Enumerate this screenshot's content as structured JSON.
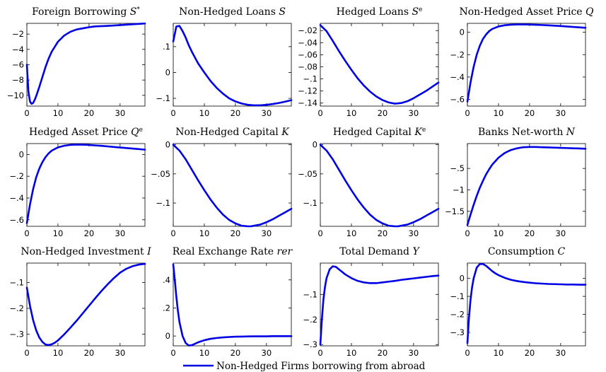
{
  "figure": {
    "legend_label": "Non-Hedged Firms borrowing from abroad",
    "line_color": "#0000e6"
  },
  "chart_data": [
    {
      "type": "line",
      "title": "Foreign Borrowing S*",
      "title_main": "Foreign Borrowing ",
      "title_sym": "S",
      "title_sup": "*",
      "xlim": [
        0,
        38
      ],
      "ylim": [
        -11.4,
        -0.6
      ],
      "xticks": [
        0,
        10,
        20,
        30
      ],
      "yticks": [
        -2,
        -4,
        -6,
        -8,
        -10
      ],
      "series": [
        {
          "x": [
            0,
            0.5,
            1,
            1.5,
            2,
            2.5,
            3,
            3.5,
            4,
            5,
            6,
            7,
            8,
            10,
            12,
            14,
            16,
            18,
            20,
            22,
            25,
            28,
            31,
            34,
            38
          ],
          "y": [
            -6,
            -9.5,
            -10.8,
            -11.1,
            -11,
            -10.6,
            -10.1,
            -9.5,
            -8.9,
            -7.6,
            -6.3,
            -5.2,
            -4.3,
            -3,
            -2.2,
            -1.7,
            -1.4,
            -1.25,
            -1.1,
            -1,
            -0.95,
            -0.88,
            -0.8,
            -0.72,
            -0.62
          ]
        }
      ]
    },
    {
      "type": "line",
      "title": "Non-Hedged Loans S",
      "title_main": "Non-Hedged Loans ",
      "title_sym": "S",
      "title_sup": "",
      "xlim": [
        0,
        38
      ],
      "ylim": [
        -0.13,
        0.19
      ],
      "xticks": [
        0,
        10,
        20,
        30
      ],
      "yticks": [
        0.1,
        0,
        -0.1
      ],
      "series": [
        {
          "x": [
            0,
            1,
            2,
            3,
            4,
            5,
            6,
            8,
            10,
            12,
            14,
            16,
            18,
            20,
            22,
            24,
            26,
            28,
            30,
            32,
            34,
            36,
            38
          ],
          "y": [
            0.12,
            0.178,
            0.18,
            0.16,
            0.135,
            0.105,
            0.08,
            0.035,
            0,
            -0.033,
            -0.06,
            -0.082,
            -0.1,
            -0.112,
            -0.12,
            -0.125,
            -0.127,
            -0.127,
            -0.125,
            -0.122,
            -0.118,
            -0.113,
            -0.107
          ]
        }
      ]
    },
    {
      "type": "line",
      "title": "Hedged Loans S^e",
      "title_main": "Hedged Loans ",
      "title_sym": "S",
      "title_sup": "e",
      "xlim": [
        0,
        38
      ],
      "ylim": [
        -0.145,
        -0.008
      ],
      "xticks": [
        0,
        10,
        20,
        30
      ],
      "yticks": [
        -0.02,
        -0.04,
        -0.06,
        -0.08,
        -0.1,
        -0.12,
        -0.14
      ],
      "series": [
        {
          "x": [
            0,
            2,
            4,
            6,
            8,
            10,
            12,
            14,
            16,
            18,
            20,
            22,
            24,
            26,
            28,
            30,
            32,
            34,
            36,
            38
          ],
          "y": [
            -0.011,
            -0.021,
            -0.037,
            -0.054,
            -0.07,
            -0.085,
            -0.099,
            -0.111,
            -0.121,
            -0.129,
            -0.135,
            -0.139,
            -0.141,
            -0.14,
            -0.137,
            -0.132,
            -0.126,
            -0.12,
            -0.113,
            -0.106
          ]
        }
      ]
    },
    {
      "type": "line",
      "title": "Non-Hedged Asset Price Q",
      "title_main": "Non-Hedged Asset Price ",
      "title_sym": "Q",
      "title_sup": "",
      "xlim": [
        0,
        38
      ],
      "ylim": [
        -0.66,
        0.08
      ],
      "xticks": [
        0,
        10,
        20,
        30
      ],
      "yticks": [
        0,
        -0.2,
        -0.4,
        -0.6
      ],
      "series": [
        {
          "x": [
            0,
            1,
            2,
            3,
            4,
            5,
            6,
            7,
            8,
            10,
            12,
            14,
            16,
            18,
            20,
            22,
            24,
            26,
            28,
            30,
            32,
            34,
            36,
            38
          ],
          "y": [
            -0.62,
            -0.45,
            -0.31,
            -0.2,
            -0.12,
            -0.06,
            -0.02,
            0.01,
            0.03,
            0.052,
            0.063,
            0.068,
            0.07,
            0.07,
            0.069,
            0.067,
            0.065,
            0.062,
            0.059,
            0.056,
            0.052,
            0.048,
            0.044,
            0.04
          ]
        }
      ]
    },
    {
      "type": "line",
      "title": "Hedged Asset Price Q^e",
      "title_main": "Hedged Asset Price ",
      "title_sym": "Q",
      "title_sup": "e",
      "xlim": [
        0,
        38
      ],
      "ylim": [
        -0.66,
        0.1
      ],
      "xticks": [
        0,
        10,
        20,
        30
      ],
      "yticks": [
        0,
        -0.2,
        -0.4,
        -0.6
      ],
      "series": [
        {
          "x": [
            0,
            1,
            2,
            3,
            4,
            5,
            6,
            7,
            8,
            10,
            12,
            14,
            16,
            18,
            20,
            22,
            24,
            26,
            28,
            30,
            32,
            34,
            36,
            38
          ],
          "y": [
            -0.63,
            -0.46,
            -0.32,
            -0.21,
            -0.13,
            -0.07,
            -0.025,
            0.01,
            0.035,
            0.065,
            0.08,
            0.088,
            0.091,
            0.09,
            0.087,
            0.083,
            0.079,
            0.074,
            0.069,
            0.064,
            0.059,
            0.054,
            0.049,
            0.044
          ]
        }
      ]
    },
    {
      "type": "line",
      "title": "Non-Hedged Capital K",
      "title_main": "Non-Hedged Capital ",
      "title_sym": "K",
      "title_sup": "",
      "xlim": [
        0,
        38
      ],
      "ylim": [
        -0.14,
        0.002
      ],
      "xticks": [
        0,
        10,
        20,
        30
      ],
      "yticks": [
        0,
        -0.05,
        -0.1
      ],
      "series": [
        {
          "x": [
            0,
            2,
            4,
            6,
            8,
            10,
            12,
            14,
            16,
            18,
            20,
            22,
            24,
            25,
            26,
            28,
            30,
            32,
            34,
            36,
            38
          ],
          "y": [
            0,
            -0.01,
            -0.025,
            -0.043,
            -0.061,
            -0.078,
            -0.094,
            -0.108,
            -0.12,
            -0.129,
            -0.135,
            -0.139,
            -0.14,
            -0.14,
            -0.139,
            -0.137,
            -0.133,
            -0.128,
            -0.122,
            -0.116,
            -0.11
          ]
        }
      ]
    },
    {
      "type": "line",
      "title": "Hedged Capital K^e",
      "title_main": "Hedged Capital ",
      "title_sym": "K",
      "title_sup": "e",
      "xlim": [
        0,
        38
      ],
      "ylim": [
        -0.14,
        0.002
      ],
      "xticks": [
        0,
        10,
        20,
        30
      ],
      "yticks": [
        0,
        -0.05,
        -0.1
      ],
      "series": [
        {
          "x": [
            0,
            2,
            4,
            6,
            8,
            10,
            12,
            14,
            16,
            18,
            20,
            22,
            24,
            25,
            26,
            28,
            30,
            32,
            34,
            36,
            38
          ],
          "y": [
            0,
            -0.01,
            -0.025,
            -0.043,
            -0.061,
            -0.078,
            -0.094,
            -0.108,
            -0.12,
            -0.129,
            -0.135,
            -0.139,
            -0.14,
            -0.14,
            -0.139,
            -0.137,
            -0.133,
            -0.128,
            -0.122,
            -0.116,
            -0.11
          ]
        }
      ]
    },
    {
      "type": "line",
      "title": "Banks Net-worth N",
      "title_main": "Banks Net-worth ",
      "title_sym": "N",
      "title_sup": "",
      "xlim": [
        0,
        38
      ],
      "ylim": [
        -1.85,
        0.08
      ],
      "xticks": [
        0,
        10,
        20,
        30
      ],
      "yticks": [
        -0.5,
        -1,
        -1.5
      ],
      "series": [
        {
          "x": [
            0,
            1,
            2,
            3,
            4,
            5,
            6,
            7,
            8,
            10,
            12,
            14,
            16,
            18,
            20,
            22,
            24,
            26,
            28,
            30,
            32,
            34,
            36,
            38
          ],
          "y": [
            -1.82,
            -1.58,
            -1.35,
            -1.14,
            -0.95,
            -0.79,
            -0.64,
            -0.52,
            -0.41,
            -0.25,
            -0.14,
            -0.07,
            -0.03,
            -0.005,
            0,
            0,
            -0.005,
            -0.01,
            -0.015,
            -0.02,
            -0.025,
            -0.03,
            -0.035,
            -0.04
          ]
        }
      ]
    },
    {
      "type": "line",
      "title": "Non-Hedged Investment I",
      "title_main": "Non-Hedged Investment ",
      "title_sym": "I",
      "title_sup": "",
      "xlim": [
        0,
        38
      ],
      "ylim": [
        -0.345,
        -0.025
      ],
      "xticks": [
        0,
        10,
        20,
        30
      ],
      "yticks": [
        -0.1,
        -0.2,
        -0.3
      ],
      "series": [
        {
          "x": [
            0,
            1,
            2,
            3,
            4,
            5,
            6,
            7,
            8,
            9,
            10,
            12,
            14,
            16,
            18,
            20,
            22,
            24,
            26,
            28,
            30,
            32,
            34,
            36,
            38
          ],
          "y": [
            -0.12,
            -0.19,
            -0.245,
            -0.285,
            -0.313,
            -0.33,
            -0.34,
            -0.342,
            -0.339,
            -0.333,
            -0.324,
            -0.301,
            -0.275,
            -0.248,
            -0.219,
            -0.19,
            -0.161,
            -0.133,
            -0.107,
            -0.083,
            -0.062,
            -0.047,
            -0.037,
            -0.031,
            -0.028
          ]
        }
      ]
    },
    {
      "type": "line",
      "title": "Real Exchange Rate rer",
      "title_main": "Real Exchange Rate ",
      "title_sym": "rer",
      "title_sup": "",
      "xlim": [
        0,
        38
      ],
      "ylim": [
        -0.07,
        0.52
      ],
      "xticks": [
        0,
        10,
        20,
        30
      ],
      "yticks": [
        0.4,
        0.2,
        0
      ],
      "series": [
        {
          "x": [
            0,
            0.5,
            1,
            1.5,
            2,
            3,
            4,
            5,
            6,
            7,
            8,
            10,
            12,
            14,
            16,
            18,
            20,
            22,
            24,
            26,
            28,
            30,
            32,
            34,
            36,
            38
          ],
          "y": [
            0.51,
            0.4,
            0.28,
            0.18,
            0.1,
            0,
            -0.05,
            -0.068,
            -0.065,
            -0.055,
            -0.045,
            -0.03,
            -0.02,
            -0.014,
            -0.01,
            -0.007,
            -0.005,
            -0.004,
            -0.003,
            -0.002,
            -0.002,
            -0.002,
            -0.001,
            -0.001,
            -0.001,
            -0.001
          ]
        }
      ]
    },
    {
      "type": "line",
      "title": "Total Demand Y",
      "title_main": "Total Demand ",
      "title_sym": "Y",
      "title_sup": "",
      "xlim": [
        0,
        38
      ],
      "ylim": [
        -0.305,
        0.025
      ],
      "xticks": [
        0,
        10,
        20,
        30
      ],
      "yticks": [
        -0.1,
        -0.2,
        -0.3
      ],
      "series": [
        {
          "x": [
            0,
            0.5,
            1,
            1.5,
            2,
            3,
            4,
            5,
            6,
            7,
            8,
            10,
            12,
            14,
            16,
            18,
            20,
            22,
            24,
            26,
            28,
            30,
            32,
            34,
            36,
            38
          ],
          "y": [
            -0.3,
            -0.2,
            -0.12,
            -0.07,
            -0.035,
            0,
            0.012,
            0.01,
            0,
            -0.01,
            -0.02,
            -0.035,
            -0.046,
            -0.052,
            -0.055,
            -0.055,
            -0.052,
            -0.049,
            -0.046,
            -0.042,
            -0.039,
            -0.036,
            -0.033,
            -0.03,
            -0.027,
            -0.025
          ]
        }
      ]
    },
    {
      "type": "line",
      "title": "Consumption C",
      "title_main": "Consumption ",
      "title_sym": "C",
      "title_sup": "",
      "xlim": [
        0,
        38
      ],
      "ylim": [
        -0.375,
        0.085
      ],
      "xticks": [
        0,
        10,
        20,
        30
      ],
      "yticks": [
        0,
        -0.1,
        -0.2,
        -0.3
      ],
      "series": [
        {
          "x": [
            0,
            0.5,
            1,
            1.5,
            2,
            3,
            4,
            5,
            6,
            7,
            8,
            9,
            10,
            12,
            14,
            16,
            18,
            20,
            22,
            24,
            26,
            28,
            30,
            32,
            34,
            36,
            38
          ],
          "y": [
            -0.36,
            -0.22,
            -0.12,
            -0.05,
            0,
            0.06,
            0.08,
            0.08,
            0.07,
            0.055,
            0.04,
            0.028,
            0.018,
            0.003,
            -0.008,
            -0.015,
            -0.02,
            -0.024,
            -0.027,
            -0.029,
            -0.031,
            -0.032,
            -0.033,
            -0.034,
            -0.034,
            -0.035,
            -0.035
          ]
        }
      ]
    }
  ]
}
